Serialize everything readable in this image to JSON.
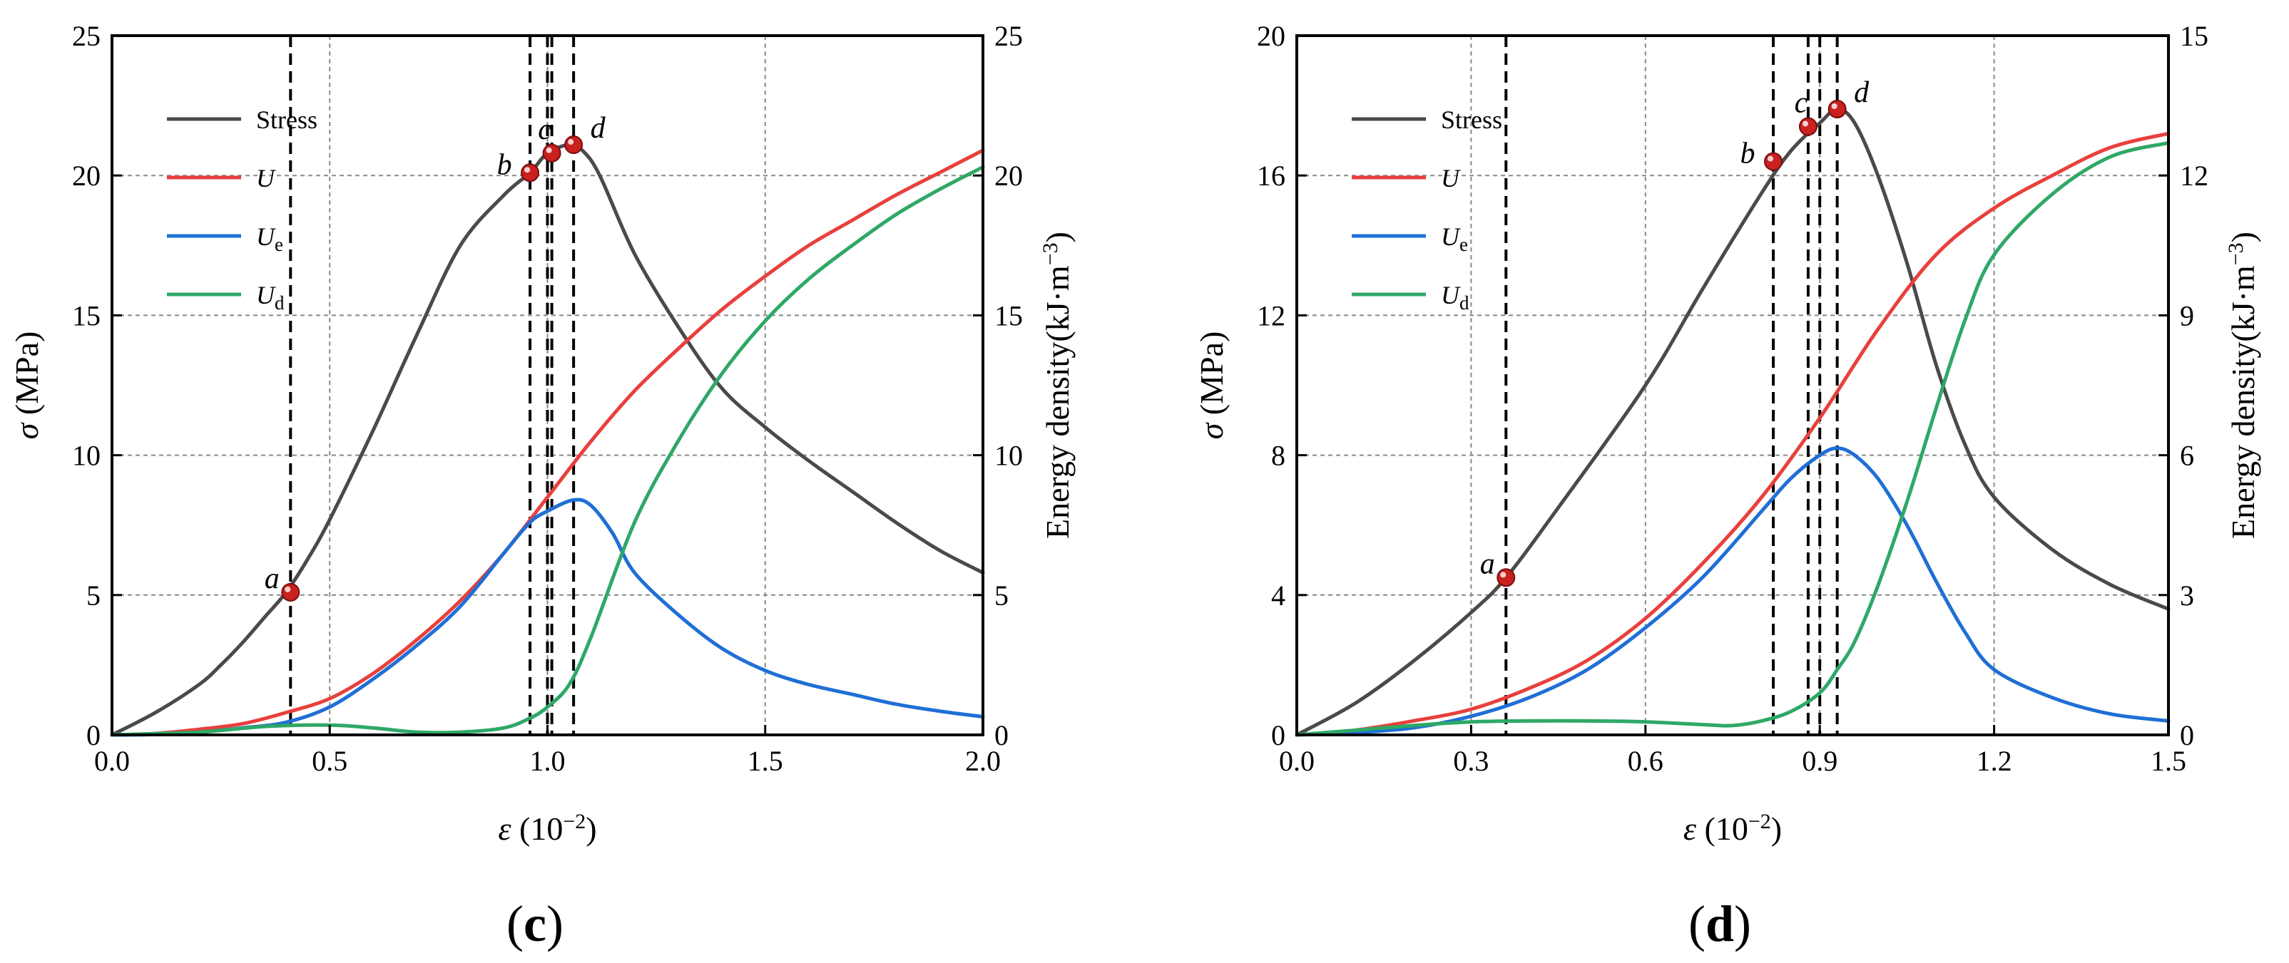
{
  "chart_data": [
    {
      "type": "line",
      "panel_label": "(c)",
      "xlabel": "ε (10⁻²)",
      "ylabel_left": "σ (MPa)",
      "ylabel_right": "Energy density(kJ·m⁻³)",
      "xlim": [
        0,
        2.0
      ],
      "ylim_left": [
        0,
        25
      ],
      "ylim_right": [
        0,
        25
      ],
      "x_ticks": [
        "0.0",
        "0.5",
        "1.0",
        "1.5",
        "2.0"
      ],
      "x_tick_values": [
        0,
        0.5,
        1.0,
        1.5,
        2.0
      ],
      "y_ticks_left": [
        "0",
        "5",
        "10",
        "15",
        "20",
        "25"
      ],
      "y_tick_values_left": [
        0,
        5,
        10,
        15,
        20,
        25
      ],
      "y_ticks_right": [
        "0",
        "5",
        "10",
        "15",
        "20",
        "25"
      ],
      "y_tick_values_right": [
        0,
        5,
        10,
        15,
        20,
        25
      ],
      "grid": true,
      "legend_position": "top-left",
      "legend": [
        {
          "label": "Stress",
          "color": "#4a4a4a"
        },
        {
          "label": "U",
          "color": "#e8403d"
        },
        {
          "label": "Ue",
          "color": "#1f6fd6"
        },
        {
          "label": "Ud",
          "color": "#2ea866"
        }
      ],
      "series": [
        {
          "name": "Stress",
          "axis": "left",
          "color": "#4a4a4a",
          "x": [
            0,
            0.1,
            0.2,
            0.25,
            0.3,
            0.35,
            0.4,
            0.45,
            0.5,
            0.6,
            0.7,
            0.8,
            0.9,
            0.96,
            1.0,
            1.05,
            1.08,
            1.12,
            1.2,
            1.3,
            1.4,
            1.5,
            1.6,
            1.7,
            1.8,
            1.9,
            2.0
          ],
          "y": [
            0,
            0.8,
            1.8,
            2.5,
            3.3,
            4.2,
            5.1,
            6.3,
            7.7,
            10.9,
            14.3,
            17.5,
            19.3,
            20.1,
            20.8,
            21.1,
            20.9,
            20.0,
            17.2,
            14.6,
            12.4,
            11.0,
            9.8,
            8.7,
            7.6,
            6.6,
            5.8
          ]
        },
        {
          "name": "U",
          "axis": "right",
          "color": "#e8403d",
          "x": [
            0,
            0.1,
            0.2,
            0.3,
            0.4,
            0.5,
            0.6,
            0.7,
            0.8,
            0.9,
            1.0,
            1.1,
            1.2,
            1.3,
            1.4,
            1.5,
            1.6,
            1.7,
            1.8,
            1.9,
            2.0
          ],
          "y": [
            0,
            0.05,
            0.2,
            0.4,
            0.8,
            1.3,
            2.2,
            3.4,
            4.8,
            6.5,
            8.5,
            10.5,
            12.3,
            13.8,
            15.2,
            16.4,
            17.5,
            18.4,
            19.3,
            20.1,
            20.9
          ]
        },
        {
          "name": "Ue",
          "axis": "right",
          "color": "#1f6fd6",
          "x": [
            0,
            0.1,
            0.2,
            0.3,
            0.4,
            0.5,
            0.6,
            0.7,
            0.8,
            0.9,
            0.96,
            1.0,
            1.06,
            1.1,
            1.15,
            1.2,
            1.3,
            1.4,
            1.5,
            1.6,
            1.7,
            1.8,
            1.9,
            2.0
          ],
          "y": [
            0,
            0.02,
            0.1,
            0.25,
            0.45,
            1.0,
            2.0,
            3.2,
            4.6,
            6.5,
            7.6,
            8.0,
            8.4,
            8.2,
            7.2,
            5.8,
            4.3,
            3.1,
            2.3,
            1.8,
            1.45,
            1.1,
            0.85,
            0.65
          ]
        },
        {
          "name": "Ud",
          "axis": "right",
          "color": "#2ea866",
          "x": [
            0,
            0.2,
            0.35,
            0.5,
            0.6,
            0.7,
            0.8,
            0.9,
            0.96,
            1.0,
            1.05,
            1.1,
            1.2,
            1.3,
            1.4,
            1.5,
            1.6,
            1.7,
            1.8,
            1.9,
            2.0
          ],
          "y": [
            0,
            0.1,
            0.3,
            0.35,
            0.25,
            0.1,
            0.1,
            0.25,
            0.6,
            1.0,
            1.8,
            3.5,
            7.6,
            10.5,
            12.9,
            14.8,
            16.3,
            17.5,
            18.6,
            19.5,
            20.3
          ]
        }
      ],
      "markers": [
        {
          "label": "a",
          "x": 0.41,
          "y": 5.1
        },
        {
          "label": "b",
          "x": 0.96,
          "y": 20.1
        },
        {
          "label": "c",
          "x": 1.01,
          "y": 20.8
        },
        {
          "label": "d",
          "x": 1.06,
          "y": 21.1
        }
      ],
      "vlines": [
        0.41,
        0.96,
        1.0,
        1.01,
        1.06
      ]
    },
    {
      "type": "line",
      "panel_label": "(d)",
      "xlabel": "ε (10⁻²)",
      "ylabel_left": "σ (MPa)",
      "ylabel_right": "Energy density(kJ·m⁻³)",
      "xlim": [
        0,
        1.5
      ],
      "ylim_left": [
        0,
        20
      ],
      "ylim_right": [
        0,
        15
      ],
      "x_ticks": [
        "0.0",
        "0.3",
        "0.6",
        "0.9",
        "1.2",
        "1.5"
      ],
      "x_tick_values": [
        0,
        0.3,
        0.6,
        0.9,
        1.2,
        1.5
      ],
      "y_ticks_left": [
        "0",
        "4",
        "8",
        "12",
        "16",
        "20"
      ],
      "y_tick_values_left": [
        0,
        4,
        8,
        12,
        16,
        20
      ],
      "y_ticks_right": [
        "0",
        "3",
        "6",
        "9",
        "12",
        "15"
      ],
      "y_tick_values_right": [
        0,
        3,
        6,
        9,
        12,
        15
      ],
      "grid": true,
      "legend_position": "top-left",
      "legend": [
        {
          "label": "Stress",
          "color": "#4a4a4a"
        },
        {
          "label": "U",
          "color": "#e8403d"
        },
        {
          "label": "Ue",
          "color": "#1f6fd6"
        },
        {
          "label": "Ud",
          "color": "#2ea866"
        }
      ],
      "series": [
        {
          "name": "Stress",
          "axis": "left",
          "color": "#4a4a4a",
          "x": [
            0,
            0.1,
            0.2,
            0.3,
            0.36,
            0.45,
            0.6,
            0.7,
            0.8,
            0.85,
            0.9,
            0.93,
            0.96,
            1.0,
            1.05,
            1.1,
            1.15,
            1.2,
            1.3,
            1.4,
            1.5
          ],
          "y": [
            0,
            0.9,
            2.1,
            3.5,
            4.5,
            6.5,
            10.0,
            12.8,
            15.5,
            16.7,
            17.5,
            17.9,
            17.5,
            16.0,
            13.5,
            10.6,
            8.3,
            6.8,
            5.3,
            4.3,
            3.6
          ]
        },
        {
          "name": "U",
          "axis": "right",
          "color": "#e8403d",
          "x": [
            0,
            0.1,
            0.2,
            0.3,
            0.4,
            0.5,
            0.6,
            0.7,
            0.8,
            0.9,
            1.0,
            1.1,
            1.2,
            1.3,
            1.4,
            1.5
          ],
          "y": [
            0,
            0.1,
            0.3,
            0.55,
            1.0,
            1.6,
            2.5,
            3.7,
            5.1,
            6.8,
            8.7,
            10.3,
            11.3,
            12.0,
            12.6,
            12.9
          ]
        },
        {
          "name": "Ue",
          "axis": "right",
          "color": "#1f6fd6",
          "x": [
            0,
            0.1,
            0.2,
            0.3,
            0.4,
            0.5,
            0.6,
            0.7,
            0.8,
            0.85,
            0.9,
            0.93,
            0.96,
            1.0,
            1.05,
            1.1,
            1.15,
            1.2,
            1.3,
            1.4,
            1.5
          ],
          "y": [
            0,
            0.05,
            0.15,
            0.4,
            0.8,
            1.4,
            2.3,
            3.4,
            4.8,
            5.5,
            6.0,
            6.15,
            6.0,
            5.5,
            4.5,
            3.3,
            2.2,
            1.4,
            0.8,
            0.45,
            0.3
          ]
        },
        {
          "name": "Ud",
          "axis": "right",
          "color": "#2ea866",
          "x": [
            0,
            0.1,
            0.2,
            0.3,
            0.4,
            0.5,
            0.6,
            0.7,
            0.75,
            0.8,
            0.85,
            0.9,
            0.93,
            0.96,
            1.0,
            1.05,
            1.1,
            1.15,
            1.2,
            1.3,
            1.4,
            1.5
          ],
          "y": [
            0,
            0.1,
            0.2,
            0.28,
            0.3,
            0.3,
            0.28,
            0.22,
            0.2,
            0.3,
            0.5,
            0.9,
            1.4,
            2.0,
            3.2,
            5.0,
            7.0,
            8.9,
            10.3,
            11.6,
            12.4,
            12.7
          ]
        }
      ],
      "markers": [
        {
          "label": "a",
          "x": 0.36,
          "y": 4.5
        },
        {
          "label": "b",
          "x": 0.82,
          "y": 16.4
        },
        {
          "label": "c",
          "x": 0.88,
          "y": 17.4
        },
        {
          "label": "d",
          "x": 0.93,
          "y": 17.9
        }
      ],
      "vlines": [
        0.36,
        0.82,
        0.88,
        0.9,
        0.93
      ]
    }
  ]
}
